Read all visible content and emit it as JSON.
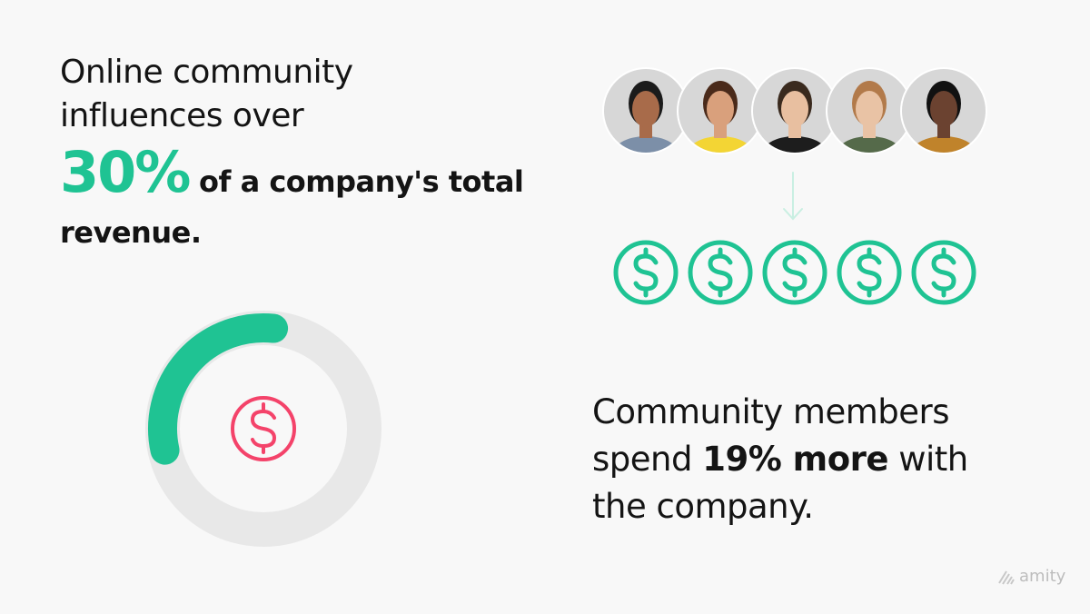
{
  "left": {
    "intro": "Online community influences over",
    "highlight": "30%",
    "rest": "of a company's total revenue.",
    "donut": {
      "percent": 30,
      "fill_color": "#1fc393",
      "track_color": "#e8e8e8",
      "icon": "dollar-circle-icon",
      "icon_color": "#f4436a"
    }
  },
  "right": {
    "avatars": [
      {
        "name": "avatar-1",
        "bg": "#d7d7d7",
        "skin": "#a86b4a",
        "hair": "#1b1b1b",
        "shirt": "#7c8fa8"
      },
      {
        "name": "avatar-2",
        "bg": "#d7d7d7",
        "skin": "#d9a07c",
        "hair": "#4a2a1a",
        "shirt": "#f3d534"
      },
      {
        "name": "avatar-3",
        "bg": "#d7d7d7",
        "skin": "#e8bfa0",
        "hair": "#3a2a1e",
        "shirt": "#1d1d1d"
      },
      {
        "name": "avatar-4",
        "bg": "#d7d7d7",
        "skin": "#e9c3a5",
        "hair": "#b27a4a",
        "shirt": "#556a4a"
      },
      {
        "name": "avatar-5",
        "bg": "#d7d7d7",
        "skin": "#6b4230",
        "hair": "#111111",
        "shirt": "#c0832b"
      }
    ],
    "arrow_icon": "arrow-down-icon",
    "dollar_icons": 5,
    "dollar_color": "#1fc393",
    "text_before": "Community members spend ",
    "text_bold": "19% more",
    "text_after": " with the company."
  },
  "logo": {
    "text": "amity"
  }
}
